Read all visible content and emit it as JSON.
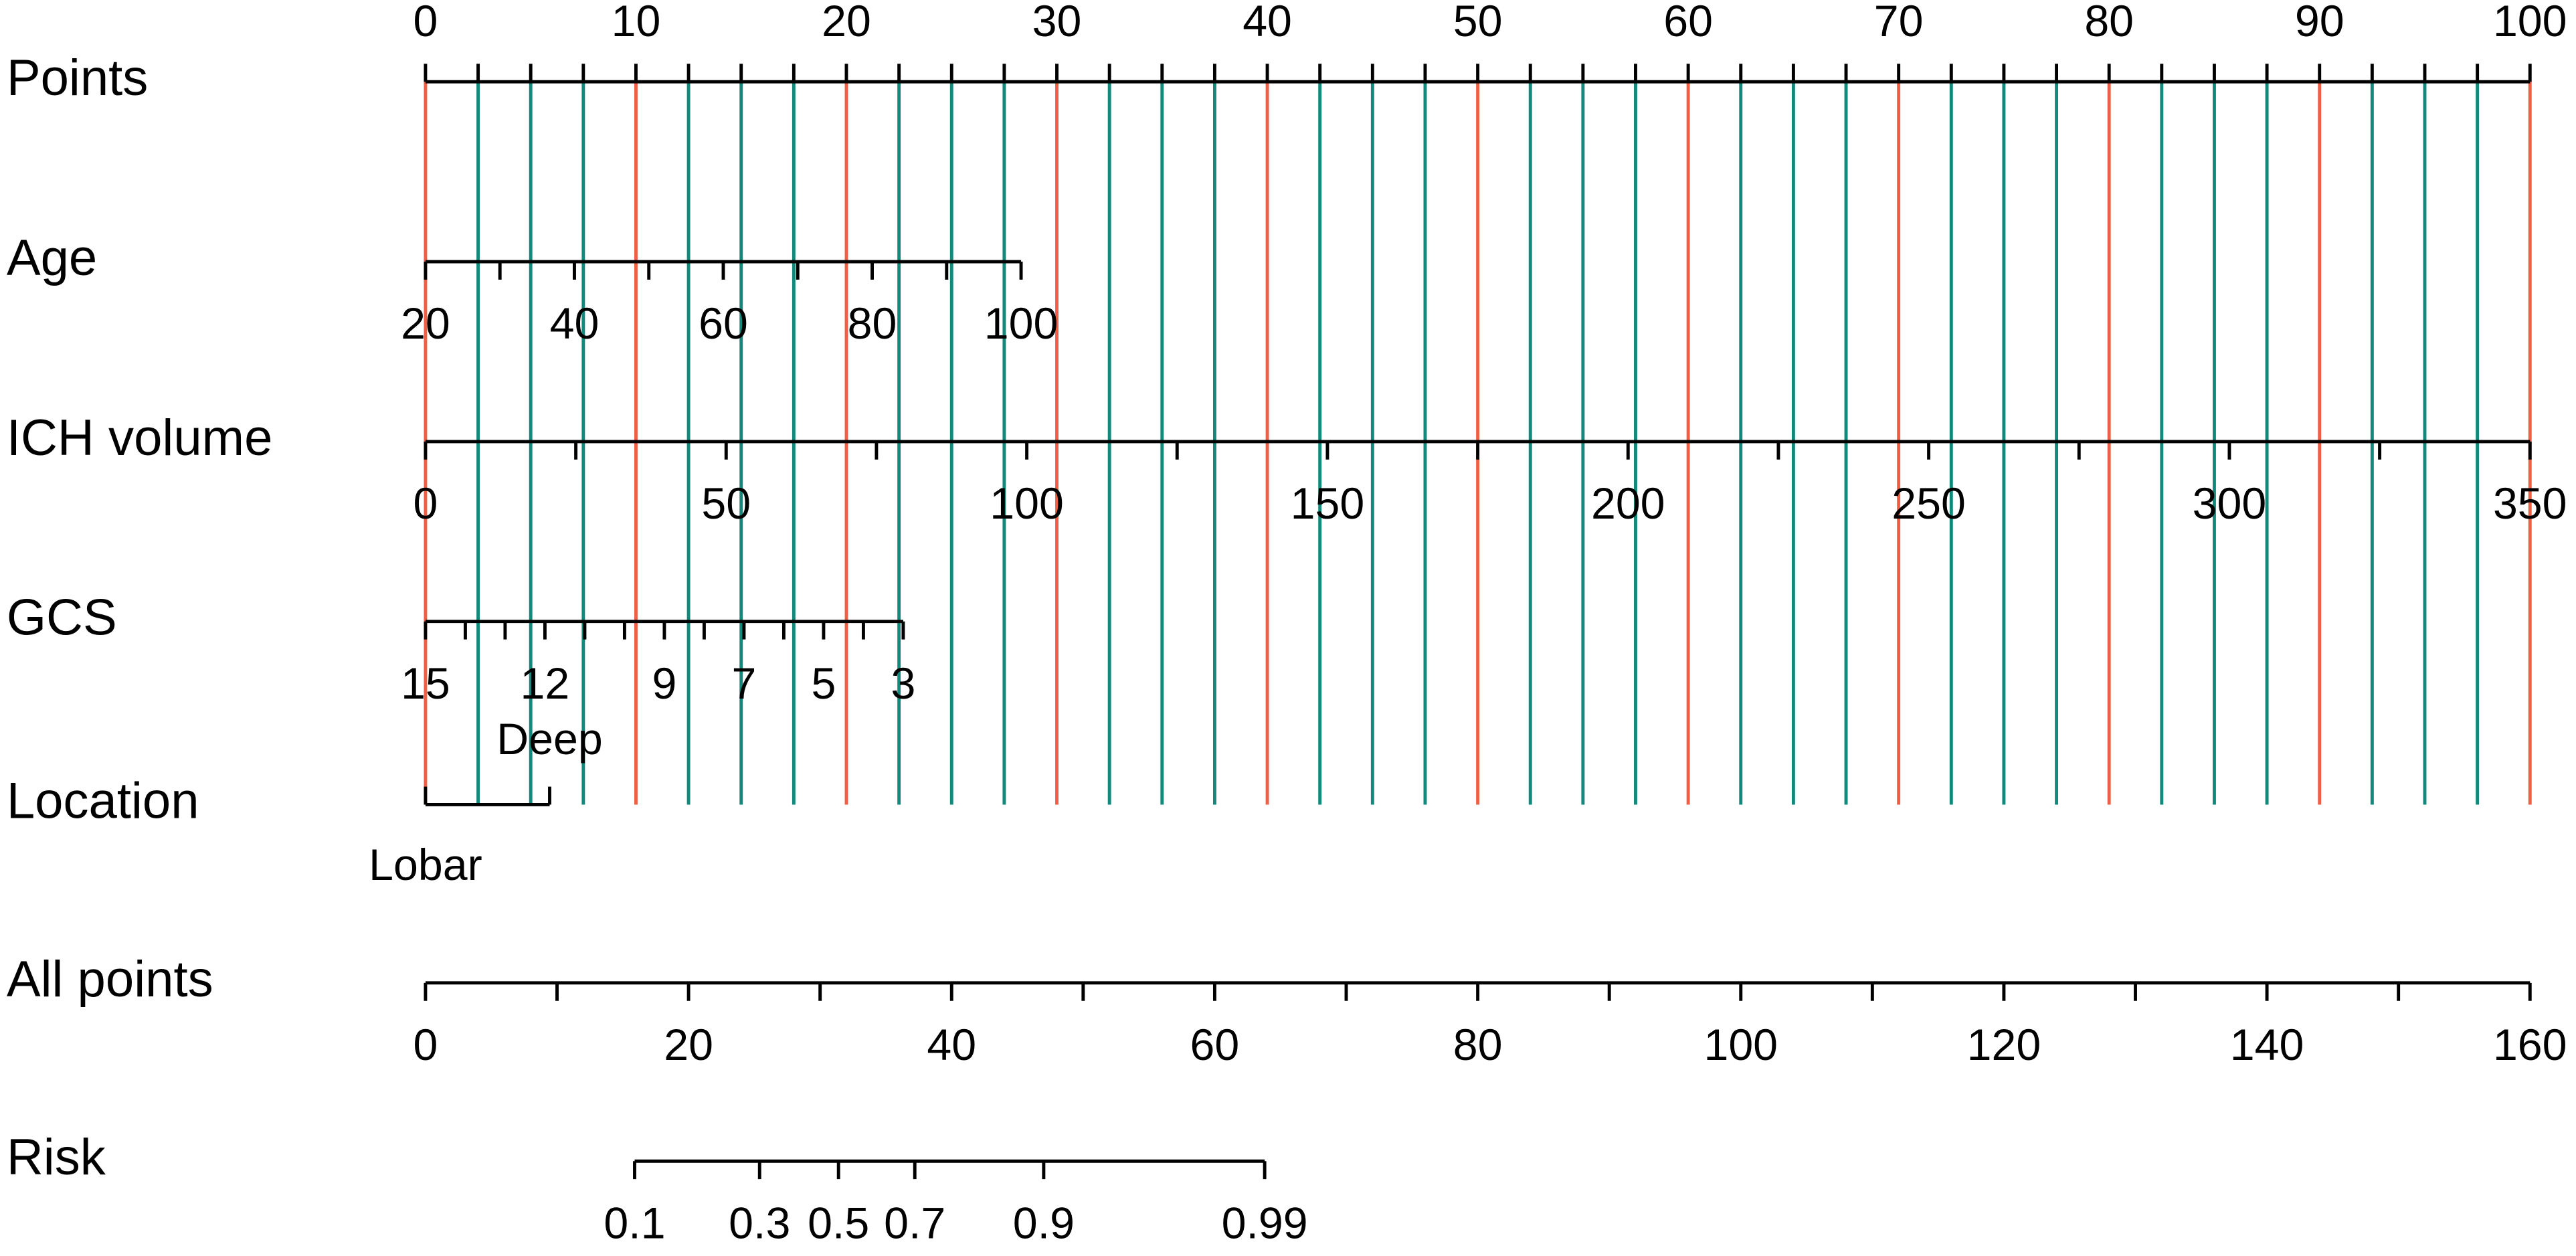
{
  "chart_data": {
    "type": "nomogram",
    "grid": {
      "major_step": 10,
      "minor_step": 2.5,
      "major_color": "#ef5f45",
      "minor_color": "#12897a"
    },
    "rows": [
      {
        "name": "Points",
        "scale": "points",
        "lim": [
          0,
          100
        ],
        "points_at_lim": [
          0,
          100
        ],
        "ticks": [
          0,
          10,
          20,
          30,
          40,
          50,
          60,
          70,
          80,
          90,
          100
        ],
        "minor_step": 2.5,
        "tick_side": "up"
      },
      {
        "name": "Age",
        "scale": "points",
        "lim": [
          20,
          100
        ],
        "points_at_lim": [
          0,
          28.3
        ],
        "ticks": [
          20,
          40,
          60,
          80,
          100
        ],
        "minor_step": 10,
        "tick_side": "down"
      },
      {
        "name": "ICH volume",
        "scale": "points",
        "lim": [
          0,
          350
        ],
        "points_at_lim": [
          0,
          100
        ],
        "ticks": [
          0,
          50,
          100,
          150,
          200,
          250,
          300,
          350
        ],
        "minor_step": 25,
        "tick_side": "down"
      },
      {
        "name": "GCS",
        "scale": "points",
        "lim": [
          15,
          3
        ],
        "points_at_lim": [
          0,
          22.7
        ],
        "ticks": [
          15,
          12,
          9,
          7,
          5,
          3
        ],
        "minor_step": 1,
        "tick_side": "down"
      },
      {
        "name": "Location",
        "scale": "points",
        "categories": [
          "Lobar",
          "Deep"
        ],
        "points": [
          0,
          5.9
        ],
        "tick_side": "up"
      },
      {
        "name": "All points",
        "scale": "total",
        "lim": [
          0,
          160
        ],
        "ticks": [
          0,
          20,
          40,
          60,
          80,
          100,
          120,
          140,
          160
        ],
        "minor_step": 10,
        "tick_side": "down"
      },
      {
        "name": "Risk",
        "scale": "total",
        "ticks": [
          0.1,
          0.3,
          0.5,
          0.7,
          0.9,
          0.99
        ],
        "tick_points": [
          15.9,
          25.4,
          31.4,
          37.2,
          47.0,
          63.8
        ],
        "tick_side": "down"
      }
    ]
  }
}
